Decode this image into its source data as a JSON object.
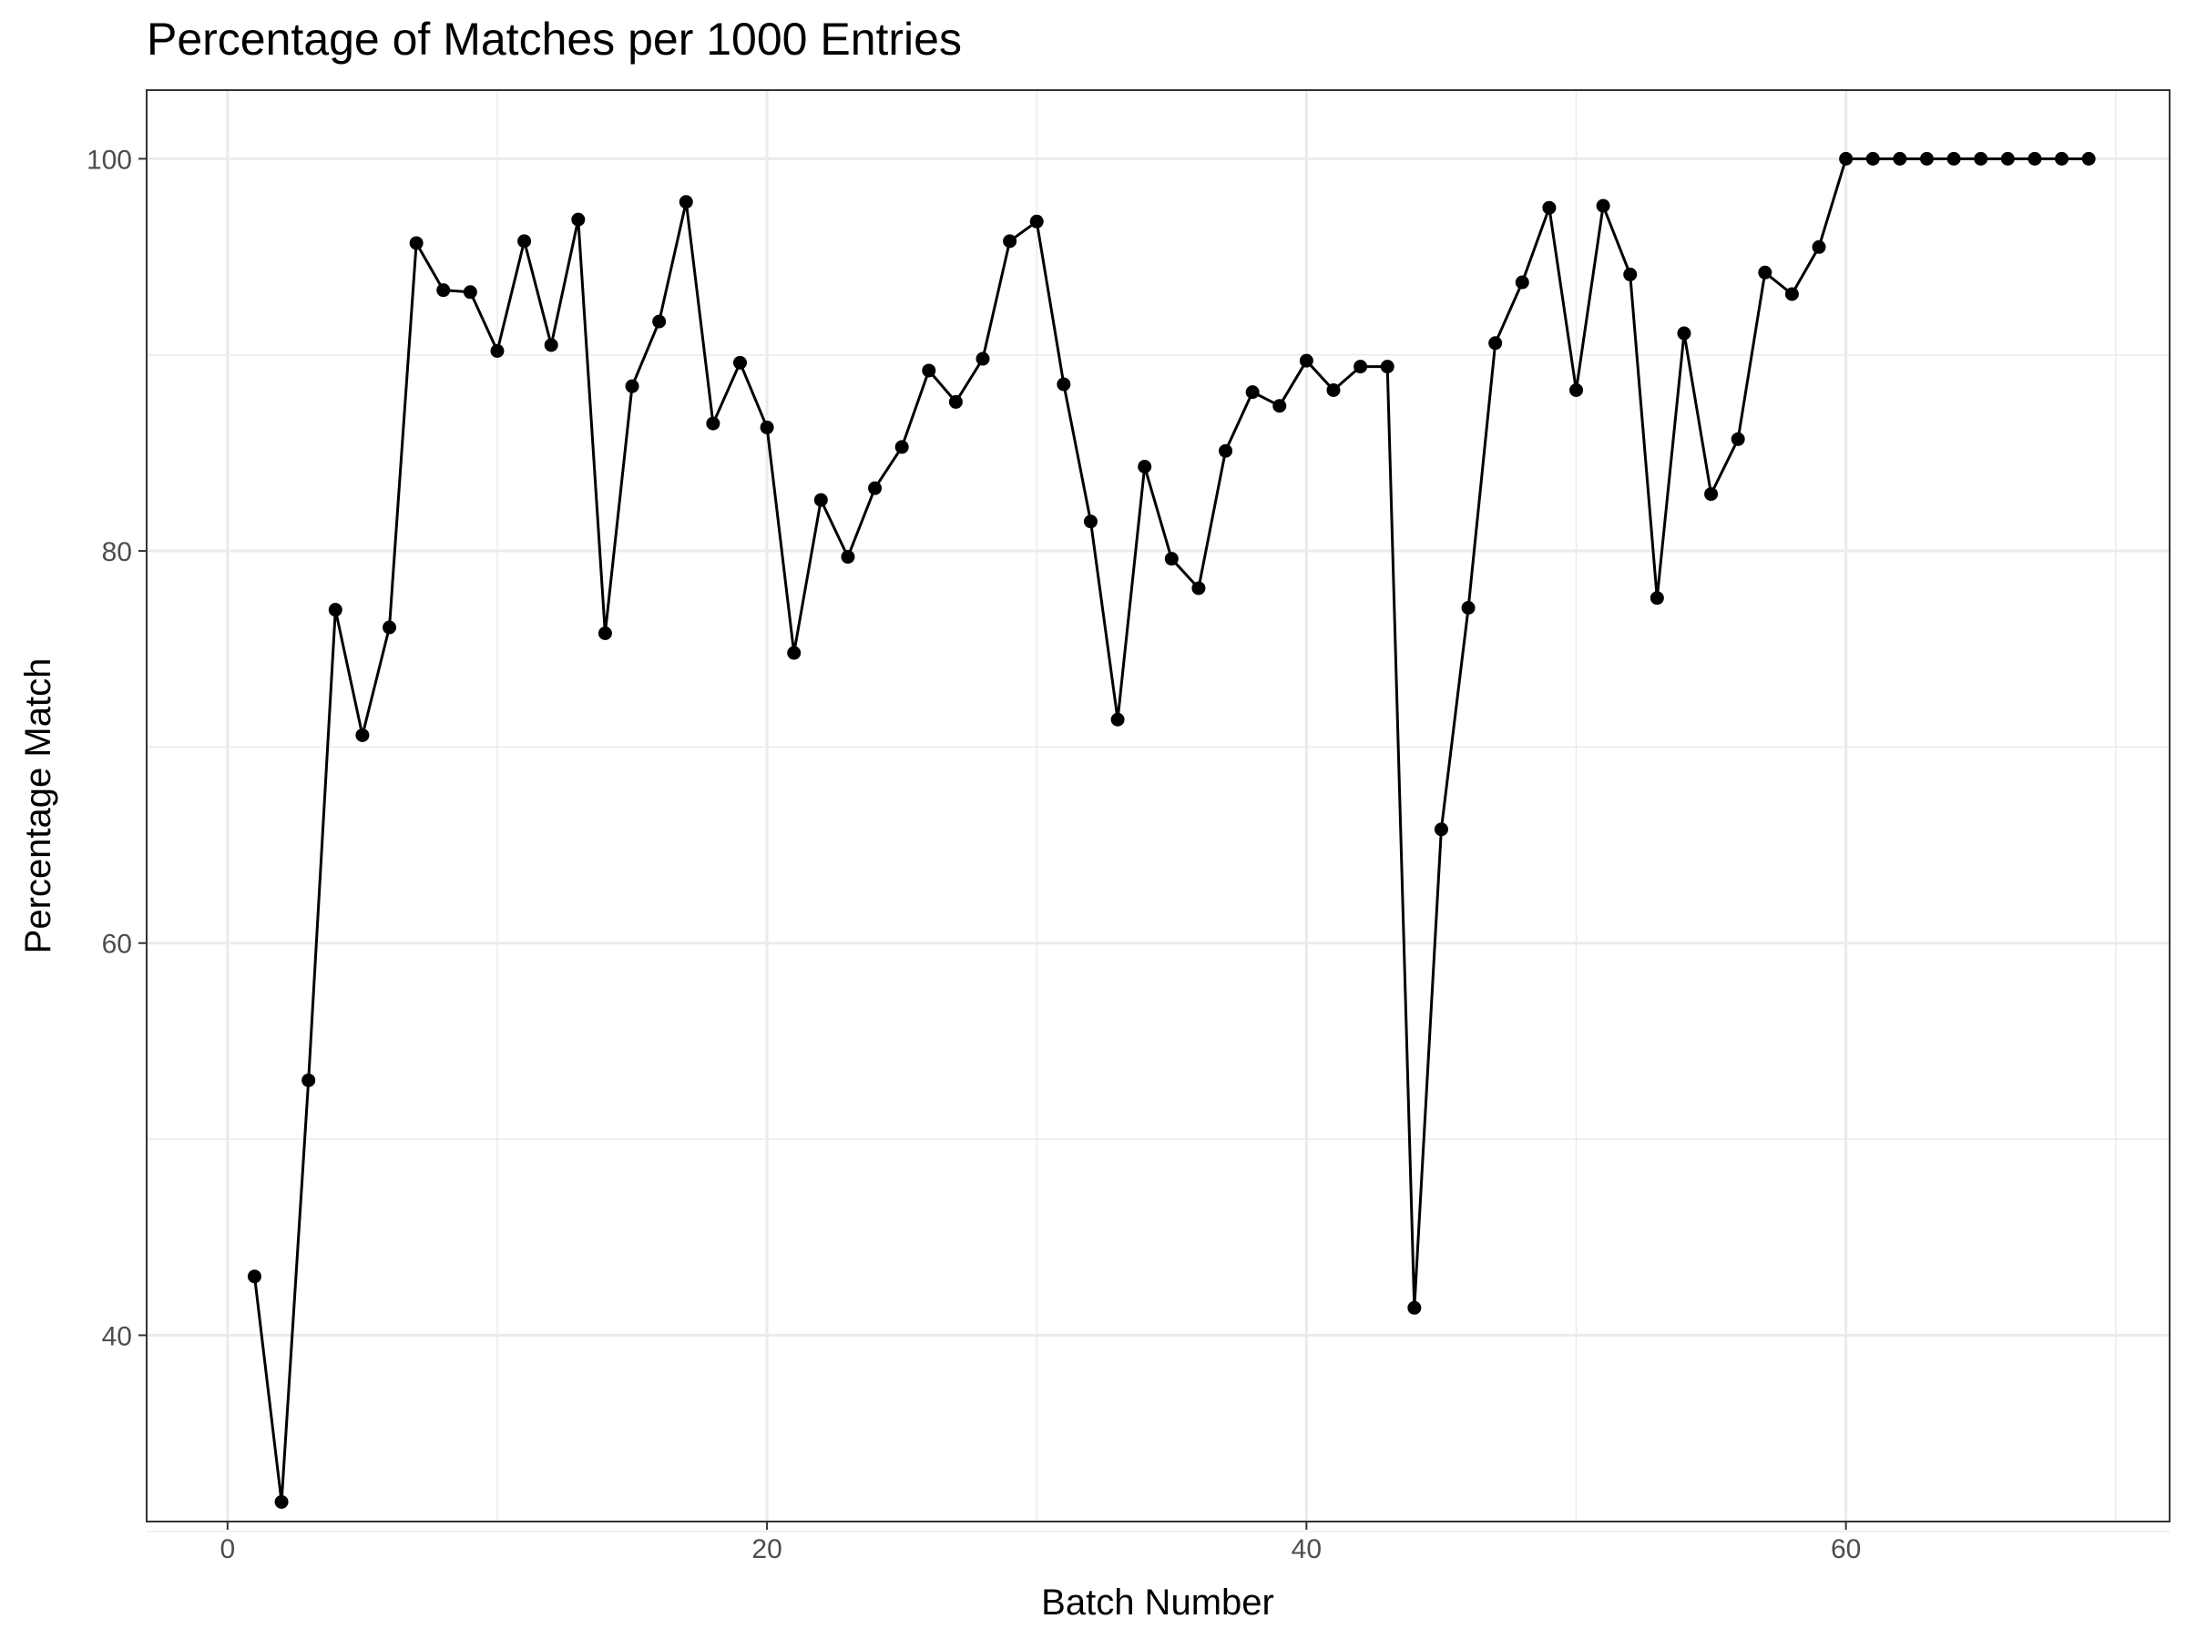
{
  "chart_data": {
    "type": "line",
    "title": "Percentage of Matches per 1000 Entries",
    "xlabel": "Batch Number",
    "ylabel": "Percentage Match",
    "xlim": [
      -3,
      72
    ],
    "ylim": [
      30.5,
      103.5
    ],
    "xticks": [
      0,
      20,
      40,
      60
    ],
    "xtick_labels": [
      "0",
      "20",
      "40",
      "60"
    ],
    "yticks": [
      40,
      60,
      80,
      100
    ],
    "ytick_labels": [
      "40",
      "60",
      "80",
      "100"
    ],
    "x_minor_grid": [
      10,
      30,
      50,
      70
    ],
    "y_minor_grid": [
      30,
      50,
      70,
      90
    ],
    "grid": true,
    "line_color": "#000000",
    "x": [
      1,
      2,
      3,
      4,
      5,
      6,
      7,
      8,
      9,
      10,
      11,
      12,
      13,
      14,
      15,
      16,
      17,
      18,
      19,
      20,
      21,
      22,
      23,
      24,
      25,
      26,
      27,
      28,
      29,
      30,
      31,
      32,
      33,
      34,
      35,
      36,
      37,
      38,
      39,
      40,
      41,
      42,
      43,
      44,
      45,
      46,
      47,
      48,
      49,
      50,
      51,
      52,
      53,
      54,
      55,
      56,
      57,
      58,
      59,
      60,
      61,
      62,
      63,
      64,
      65,
      66,
      67,
      68,
      69
    ],
    "y": [
      43.0,
      31.5,
      53.0,
      77.0,
      70.6,
      76.1,
      95.7,
      93.3,
      93.2,
      90.2,
      95.8,
      90.5,
      96.9,
      75.8,
      88.4,
      91.7,
      97.8,
      86.5,
      89.6,
      86.3,
      74.8,
      82.6,
      79.7,
      83.2,
      85.3,
      89.2,
      87.6,
      89.8,
      95.8,
      96.8,
      88.5,
      81.5,
      71.4,
      84.3,
      79.6,
      78.1,
      85.1,
      88.1,
      87.4,
      89.7,
      88.2,
      89.4,
      89.4,
      41.4,
      65.8,
      77.1,
      90.6,
      93.7,
      97.5,
      88.2,
      97.6,
      94.1,
      77.6,
      91.1,
      82.9,
      85.7,
      94.2,
      93.1,
      95.5,
      100,
      100,
      100,
      100,
      100,
      100,
      100,
      100,
      100,
      100
    ]
  }
}
